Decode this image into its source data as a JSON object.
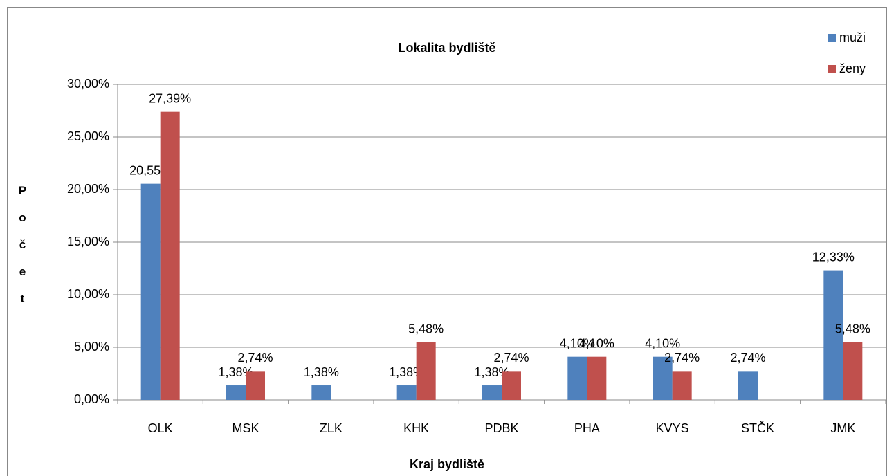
{
  "chart_data": {
    "type": "bar",
    "title": "Lokalita bydliště",
    "x_label": "Kraj bydliště",
    "y_label": "Počet",
    "categories": [
      "OLK",
      "MSK",
      "ZLK",
      "KHK",
      "PDBK",
      "PHA",
      "KVYS",
      "STČK",
      "JMK"
    ],
    "series": [
      {
        "name": "muži",
        "color": "#4f81bd",
        "values": [
          20.55,
          1.38,
          1.38,
          1.38,
          1.38,
          4.1,
          4.1,
          2.74,
          12.33
        ],
        "value_labels": [
          "20,55%",
          "1,38%",
          "1,38%",
          "1,38%",
          "1,38%",
          "4,10%",
          "4,10%",
          "2,74%",
          "12,33%"
        ]
      },
      {
        "name": "ženy",
        "color": "#c0504d",
        "values": [
          27.39,
          2.74,
          null,
          5.48,
          2.74,
          4.1,
          2.74,
          null,
          5.48
        ],
        "value_labels": [
          "27,39%",
          "2,74%",
          null,
          "5,48%",
          "2,74%",
          "4,10%",
          "2,74%",
          null,
          "5,48%"
        ]
      }
    ],
    "ylim": [
      0,
      30
    ],
    "yticks": [
      {
        "value": 0,
        "label": "0,00%"
      },
      {
        "value": 5,
        "label": "5,00%"
      },
      {
        "value": 10,
        "label": "10,00%"
      },
      {
        "value": 15,
        "label": "15,00%"
      },
      {
        "value": 20,
        "label": "20,00%"
      },
      {
        "value": 25,
        "label": "25,00%"
      },
      {
        "value": 30,
        "label": "30,00%"
      }
    ],
    "grid": true,
    "legend": "top-right"
  }
}
